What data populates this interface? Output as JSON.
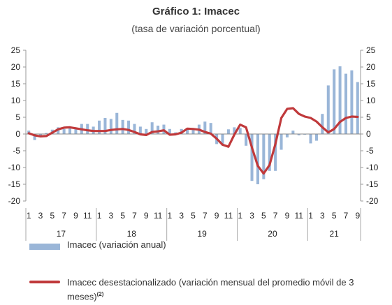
{
  "chart_data": {
    "type": "bar+line",
    "title": "Gráfico 1: Imacec",
    "subtitle": "(tasa de variación porcentual)",
    "ylim": [
      -20,
      25
    ],
    "yticks": [
      25,
      20,
      15,
      10,
      5,
      0,
      -5,
      -10,
      -15,
      -20
    ],
    "month_tick_labels": [
      "1",
      "3",
      "5",
      "7",
      "9",
      "11",
      "1",
      "3",
      "5",
      "7",
      "9",
      "11",
      "1",
      "3",
      "5",
      "7",
      "9",
      "11",
      "1",
      "3",
      "5",
      "7",
      "9",
      "11",
      "1",
      "3",
      "5",
      "7",
      "9"
    ],
    "years": [
      {
        "label": "17",
        "months": 12
      },
      {
        "label": "18",
        "months": 12
      },
      {
        "label": "19",
        "months": 12
      },
      {
        "label": "20",
        "months": 12
      },
      {
        "label": "21",
        "months": 9
      }
    ],
    "series": [
      {
        "name": "Imacec (variación anual)",
        "type": "bar",
        "color": "#9ab6d8",
        "values": [
          1.0,
          -1.8,
          -0.5,
          0.3,
          1.3,
          2.0,
          1.5,
          2.0,
          1.5,
          3.0,
          3.0,
          2.2,
          4.0,
          4.8,
          4.5,
          6.3,
          4.2,
          4.0,
          3.0,
          2.2,
          1.5,
          3.5,
          2.5,
          2.8,
          1.5,
          0.5,
          1.5,
          1.8,
          1.5,
          2.8,
          3.7,
          3.3,
          -3.0,
          -3.4,
          1.4,
          2.0,
          1.8,
          -3.5,
          -14.0,
          -15.0,
          -13.5,
          -11.0,
          -11.0,
          -4.7,
          -1.0,
          1.0,
          -0.4,
          -0.2,
          -2.8,
          -2.0,
          6.0,
          14.5,
          19.3,
          20.2,
          18.0,
          19.0,
          15.5
        ]
      },
      {
        "name": "Imacec desestacionalizado (variación mensual del promedio móvil de 3 meses)",
        "name_sup": "(2)",
        "legend_line1": "Imacec desestacionalizado (variación mensual del promedio móvil de 3",
        "legend_line2": "meses)",
        "type": "line",
        "color": "#c0393b",
        "values": [
          0.2,
          -0.4,
          -0.7,
          -0.6,
          0.4,
          1.4,
          1.9,
          2.0,
          1.7,
          1.4,
          1.1,
          0.9,
          0.9,
          0.9,
          1.2,
          1.4,
          1.5,
          1.2,
          0.6,
          -0.1,
          -0.3,
          0.6,
          0.8,
          1.1,
          -0.2,
          -0.1,
          0.4,
          1.6,
          1.5,
          1.3,
          0.6,
          0.1,
          -1.4,
          -3.2,
          -3.8,
          -0.2,
          2.8,
          2.0,
          -4.0,
          -9.5,
          -11.8,
          -9.3,
          -3.0,
          4.8,
          7.5,
          7.7,
          6.0,
          5.2,
          4.8,
          3.7,
          2.0,
          0.5,
          1.5,
          3.6,
          4.8,
          5.2,
          5.1
        ]
      }
    ]
  }
}
